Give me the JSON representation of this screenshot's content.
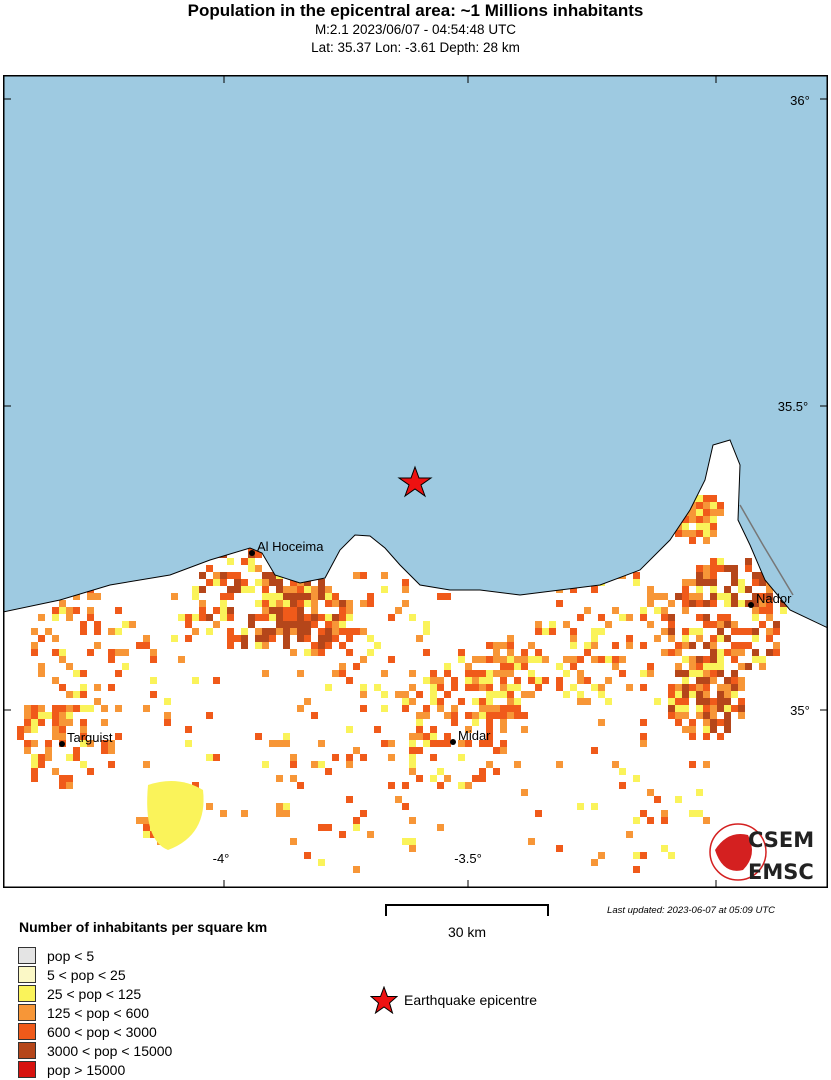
{
  "header": {
    "title": "Population in the epicentral area: ~1 Millions inhabitants",
    "subtitle": "M:2.1 2023/06/07 - 04:54:48 UTC",
    "location": "Lat: 35.37 Lon: -3.61 Depth: 28 km"
  },
  "map": {
    "lat_ticks": [
      "36°",
      "35.5°",
      "35°"
    ],
    "lon_ticks": [
      "-4°",
      "-3.5°"
    ],
    "epicentre": {
      "lat": 35.37,
      "lon": -3.61
    },
    "cities": [
      {
        "name": "Al Hoceima"
      },
      {
        "name": "Nador"
      },
      {
        "name": "Targuist"
      },
      {
        "name": "Midar"
      }
    ],
    "colors": {
      "sea": "#9ecae1",
      "land": "#ffffff",
      "epicentre": "#ee1111"
    },
    "logo_text": [
      "CSEM",
      "EMSC"
    ]
  },
  "legend": {
    "title": "Number of inhabitants per square km",
    "items": [
      {
        "label": "pop < 5",
        "color": "#e4e4e4"
      },
      {
        "label": "5 < pop < 25",
        "color": "#fbf8c6"
      },
      {
        "label": "25 < pop < 125",
        "color": "#faf35a"
      },
      {
        "label": "125 < pop < 600",
        "color": "#f79637"
      },
      {
        "label": "600 < pop < 3000",
        "color": "#f05a1a"
      },
      {
        "label": "3000 < pop < 15000",
        "color": "#b5461a"
      },
      {
        "label": "pop > 15000",
        "color": "#d7120f"
      }
    ],
    "epicentre_label": "Earthquake epicentre"
  },
  "scale": {
    "label": "30 km"
  },
  "last_updated": "Last updated: 2023-06-07 at 05:09 UTC"
}
